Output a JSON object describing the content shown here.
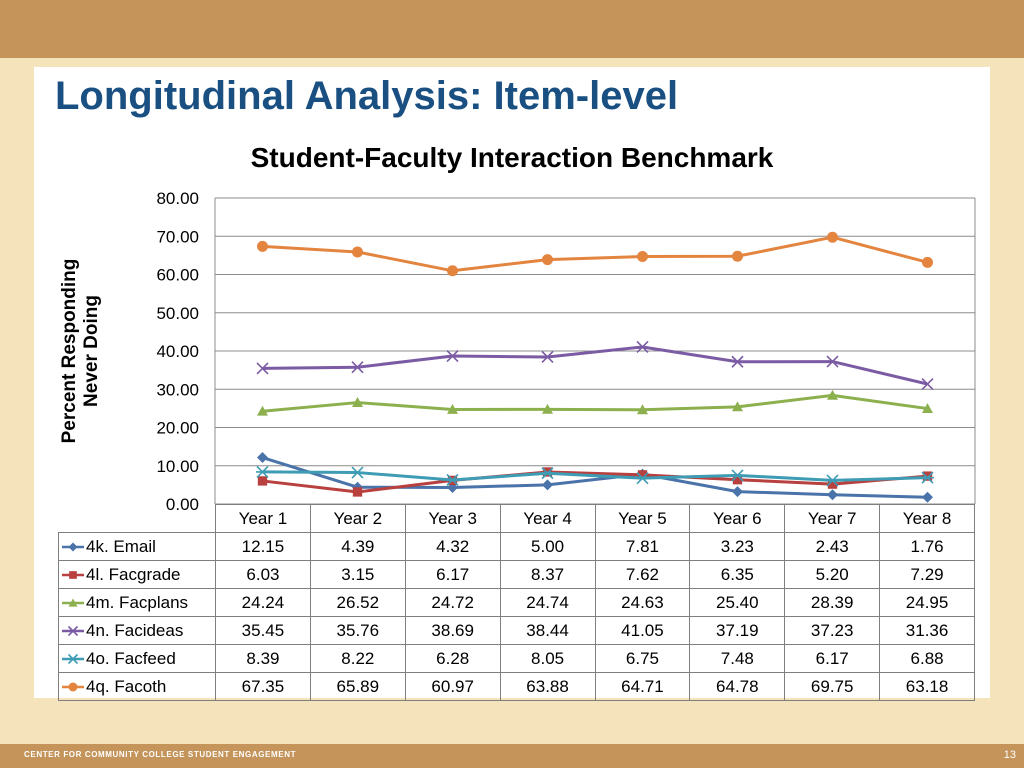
{
  "slide": {
    "title": "Longitudinal Analysis: Item-level",
    "footer": "CENTER FOR COMMUNITY COLLEGE STUDENT ENGAGEMENT",
    "page_number": "13"
  },
  "colors": {
    "top_band": "#c4945a",
    "background": "#f5e3bc",
    "title": "#1a4f82"
  },
  "chart_data": {
    "type": "line",
    "title": "Student-Faculty Interaction Benchmark",
    "ylabel_lines": [
      "Percent Responding",
      "Never Doing"
    ],
    "xlabel": "",
    "ylim": [
      0,
      80
    ],
    "yticks": [
      "0.00",
      "10.00",
      "20.00",
      "30.00",
      "40.00",
      "50.00",
      "60.00",
      "70.00",
      "80.00"
    ],
    "grid": true,
    "legend": "data-table",
    "categories": [
      "Year 1",
      "Year 2",
      "Year 3",
      "Year 4",
      "Year 5",
      "Year 6",
      "Year 7",
      "Year 8"
    ],
    "series": [
      {
        "name": "4k. Email",
        "color": "#4a73aa",
        "marker": "diamond",
        "values": [
          12.15,
          4.39,
          4.32,
          5.0,
          7.81,
          3.23,
          2.43,
          1.76
        ],
        "labels": [
          "12.15",
          "4.39",
          "4.32",
          "5.00",
          "7.81",
          "3.23",
          "2.43",
          "1.76"
        ]
      },
      {
        "name": "4l. Facgrade",
        "color": "#b8403f",
        "marker": "square",
        "values": [
          6.03,
          3.15,
          6.17,
          8.37,
          7.62,
          6.35,
          5.2,
          7.29
        ],
        "labels": [
          "6.03",
          "3.15",
          "6.17",
          "8.37",
          "7.62",
          "6.35",
          "5.20",
          "7.29"
        ]
      },
      {
        "name": "4m. Facplans",
        "color": "#8db04e",
        "marker": "triangle",
        "values": [
          24.24,
          26.52,
          24.72,
          24.74,
          24.63,
          25.4,
          28.39,
          24.95
        ],
        "labels": [
          "24.24",
          "26.52",
          "24.72",
          "24.74",
          "24.63",
          "25.40",
          "28.39",
          "24.95"
        ]
      },
      {
        "name": "4n. Facideas",
        "color": "#7b5ba3",
        "marker": "x",
        "values": [
          35.45,
          35.76,
          38.69,
          38.44,
          41.05,
          37.19,
          37.23,
          31.36
        ],
        "labels": [
          "35.45",
          "35.76",
          "38.69",
          "38.44",
          "41.05",
          "37.19",
          "37.23",
          "31.36"
        ]
      },
      {
        "name": "4o. Facfeed",
        "color": "#3e9cb4",
        "marker": "star",
        "values": [
          8.39,
          8.22,
          6.28,
          8.05,
          6.75,
          7.48,
          6.17,
          6.88
        ],
        "labels": [
          "8.39",
          "8.22",
          "6.28",
          "8.05",
          "6.75",
          "7.48",
          "6.17",
          "6.88"
        ]
      },
      {
        "name": "4q. Facoth",
        "color": "#e3843f",
        "marker": "circle",
        "values": [
          67.35,
          65.89,
          60.97,
          63.88,
          64.71,
          64.78,
          69.75,
          63.18
        ],
        "labels": [
          "67.35",
          "65.89",
          "60.97",
          "63.88",
          "64.71",
          "64.78",
          "69.75",
          "63.18"
        ]
      }
    ]
  }
}
